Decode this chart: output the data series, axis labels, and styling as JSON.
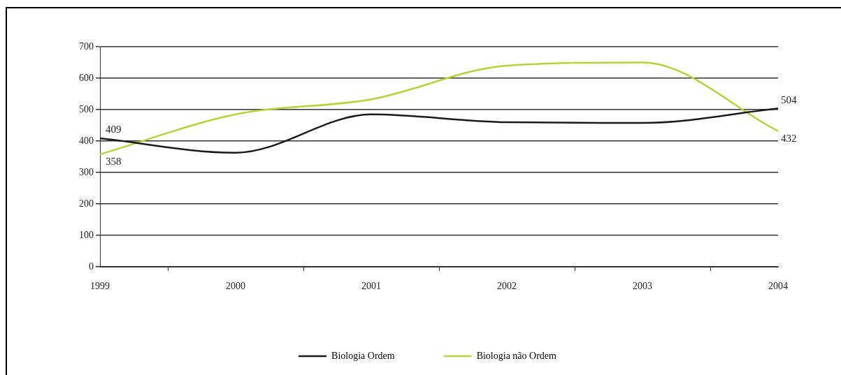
{
  "chart_data": {
    "type": "line",
    "categories": [
      "1999",
      "2000",
      "2001",
      "2002",
      "2003",
      "2004"
    ],
    "series": [
      {
        "name": "Biologia Ordem",
        "color": "#1a1a1a",
        "values": [
          409,
          363,
          485,
          460,
          458,
          504
        ],
        "value_labels": [
          "409",
          null,
          null,
          null,
          null,
          "504"
        ]
      },
      {
        "name": "Biologia não Ordem",
        "color": "#b5d334",
        "values": [
          358,
          485,
          533,
          640,
          650,
          432
        ],
        "value_labels": [
          "358",
          null,
          null,
          null,
          null,
          "432"
        ]
      }
    ],
    "ylim": [
      0,
      700
    ],
    "yticks": [
      0,
      100,
      200,
      300,
      400,
      500,
      600,
      700
    ],
    "grid": "y",
    "legend": "bottom",
    "marker": "none",
    "line_style": "solid"
  }
}
